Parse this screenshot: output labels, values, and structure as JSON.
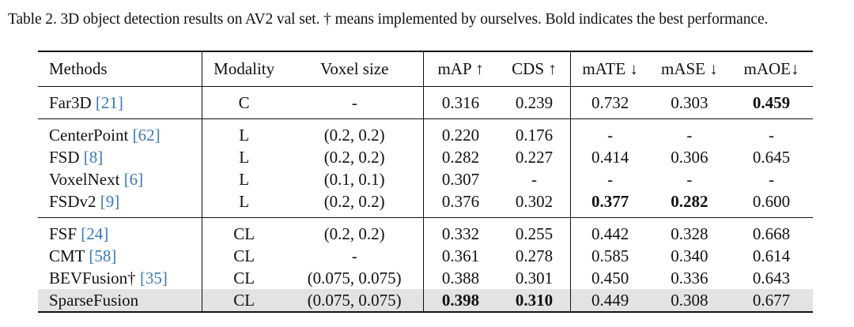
{
  "caption": "Table 2. 3D object detection results on AV2 val set. † means implemented by ourselves. Bold indicates the best performance.",
  "headers": {
    "methods": "Methods",
    "modality": "Modality",
    "voxel_size": "Voxel size",
    "map": "mAP ↑",
    "cds": "CDS ↑",
    "mate": "mATE ↓",
    "mase": "mASE ↓",
    "maoe": "mAOE↓"
  },
  "rows": [
    {
      "name": "Far3D ",
      "ref": "[21]",
      "modality": "C",
      "voxel": "-",
      "map": "0.316",
      "cds": "0.239",
      "mate": "0.732",
      "mase": "0.303",
      "maoe": "0.459"
    },
    {
      "name": "CenterPoint ",
      "ref": "[62]",
      "modality": "L",
      "voxel": "(0.2, 0.2)",
      "map": "0.220",
      "cds": "0.176",
      "mate": "-",
      "mase": "-",
      "maoe": "-"
    },
    {
      "name": "FSD ",
      "ref": "[8]",
      "modality": "L",
      "voxel": "(0.2, 0.2)",
      "map": "0.282",
      "cds": "0.227",
      "mate": "0.414",
      "mase": "0.306",
      "maoe": "0.645"
    },
    {
      "name": "VoxelNext ",
      "ref": "[6]",
      "modality": "L",
      "voxel": "(0.1, 0.1)",
      "map": "0.307",
      "cds": "-",
      "mate": "-",
      "mase": "-",
      "maoe": "-"
    },
    {
      "name": "FSDv2 ",
      "ref": "[9]",
      "modality": "L",
      "voxel": "(0.2, 0.2)",
      "map": "0.376",
      "cds": "0.302",
      "mate": "0.377",
      "mase": "0.282",
      "maoe": "0.600"
    },
    {
      "name": "FSF ",
      "ref": "[24]",
      "modality": "CL",
      "voxel": "(0.2, 0.2)",
      "map": "0.332",
      "cds": "0.255",
      "mate": "0.442",
      "mase": "0.328",
      "maoe": "0.668"
    },
    {
      "name": "CMT ",
      "ref": "[58]",
      "modality": "CL",
      "voxel": "-",
      "map": "0.361",
      "cds": "0.278",
      "mate": "0.585",
      "mase": "0.340",
      "maoe": "0.614"
    },
    {
      "name": "BEVFusion† ",
      "ref": "[35]",
      "modality": "CL",
      "voxel": "(0.075, 0.075)",
      "map": "0.388",
      "cds": "0.301",
      "mate": "0.450",
      "mase": "0.336",
      "maoe": "0.643"
    },
    {
      "name": "SparseFusion",
      "ref": "",
      "modality": "CL",
      "voxel": "(0.075, 0.075)",
      "map": "0.398",
      "cds": "0.310",
      "mate": "0.449",
      "mase": "0.308",
      "maoe": "0.677"
    }
  ]
}
